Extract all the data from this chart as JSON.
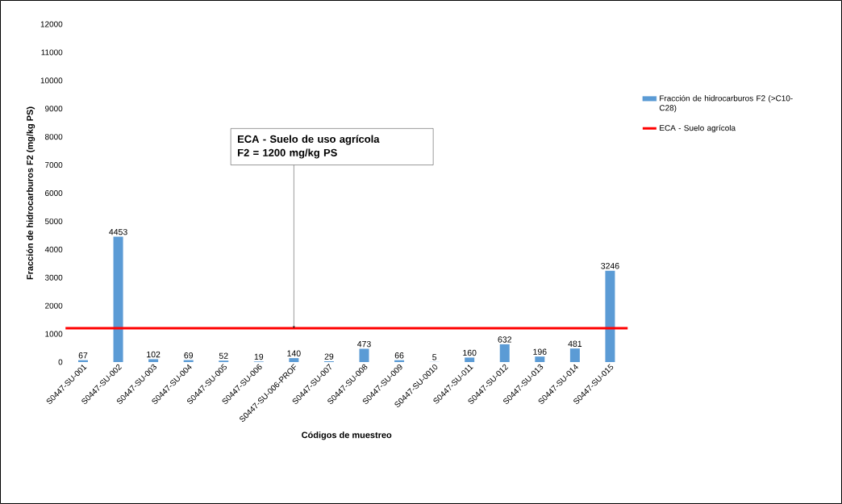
{
  "chart_data": {
    "type": "bar",
    "xlabel": "Códigos de muestreo",
    "ylabel": "Fracción de hidrocarburos F2 (mg/kg PS)",
    "categories": [
      "S0447-SU-001",
      "S0447-SU-002",
      "S0447-SU-003",
      "S0447-SU-004",
      "S0447-SU-005",
      "S0447-SU-006",
      "S0447-SU-006-PROF",
      "S0447-SU-007",
      "S0447-SU-008",
      "S0447-SU-009",
      "S0447-SU-0010",
      "S0447-SU-011",
      "S0447-SU-012",
      "S0447-SU-013",
      "S0447-SU-014",
      "S0447-SU-015"
    ],
    "series": [
      {
        "name": "Fracción de hidrocarburos F2 (>C10-C28)",
        "color": "#5b9bd5",
        "values": [
          67,
          4453,
          102,
          69,
          52,
          19,
          140,
          29,
          473,
          66,
          5,
          160,
          632,
          196,
          481,
          3246
        ]
      }
    ],
    "data_labels": true,
    "ylim": [
      0,
      12000
    ],
    "yticks": [
      0,
      1000,
      2000,
      3000,
      4000,
      5000,
      6000,
      7000,
      8000,
      9000,
      10000,
      11000,
      12000
    ],
    "ref_lines": [
      {
        "axis": "y",
        "value": 1200,
        "label": "ECA - Suelo agrícola",
        "color": "#ff0000"
      }
    ],
    "annotations": [
      "ECA - Suelo de uso agrícola",
      {
        "text": "F2 = 1200 mg/kg PS",
        "x": "S0447-SU-006-PROF",
        "y": 1200
      }
    ],
    "grid": false,
    "legend": "right"
  }
}
